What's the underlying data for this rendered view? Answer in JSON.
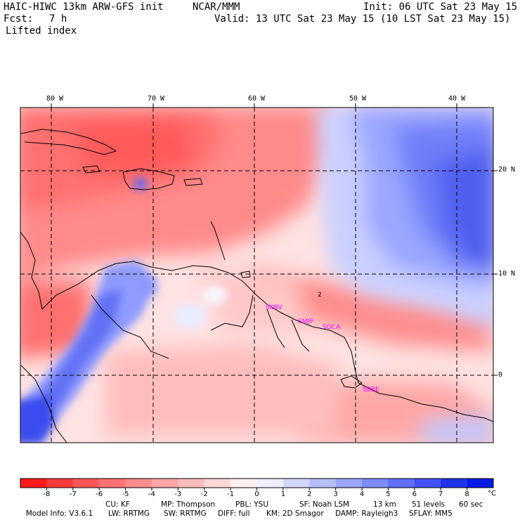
{
  "header": {
    "model_title": "HAIC-HIWC 13km ARW-GFS init",
    "org": "NCAR/MMM",
    "init": "Init: 06 UTC Sat 23 May 15",
    "fcst_label": "Fcst:",
    "fcst_value": "7 h",
    "valid": "Valid: 13 UTC Sat 23 May 15 (10 LST Sat 23 May 15)",
    "field_name": "Lifted index"
  },
  "map": {
    "lon_labels": [
      "80 W",
      "70 W",
      "60 W",
      "50 W",
      "40 W"
    ],
    "lat_labels": [
      "20 N",
      "10 N",
      "0"
    ],
    "contour_label": "2",
    "stations": [
      "SKBV",
      "SMJP",
      "SOCA",
      "SBBE"
    ],
    "colors": {
      "frame": "#000000",
      "station": "#ff00ff"
    }
  },
  "colorbar": {
    "ticks": [
      "-8",
      "-7",
      "-6",
      "-5",
      "-4",
      "-3",
      "-2",
      "-1",
      "0",
      "1",
      "2",
      "3",
      "4",
      "5",
      "6",
      "7",
      "8"
    ],
    "unit": "°C",
    "colors": [
      "#ff1a1a",
      "#ff3b3b",
      "#ff5757",
      "#ff7272",
      "#ff8c8c",
      "#ffa5a5",
      "#ffbcbc",
      "#ffd6d6",
      "#fff0f0",
      "#eef0ff",
      "#d2d8ff",
      "#b7c0ff",
      "#9aa6ff",
      "#7d8cff",
      "#606ffd",
      "#4252f5",
      "#2233ee",
      "#0a1ae6"
    ]
  },
  "footer": {
    "line1": [
      {
        "text": "Model Info: V3.6.1"
      },
      {
        "text": "CU: KF"
      },
      {
        "text": "MP: Thompson"
      },
      {
        "text": "PBL: YSU"
      },
      {
        "text": "SF: Noah LSM"
      },
      {
        "text": "13 km"
      },
      {
        "text": "51 levels"
      },
      {
        "text": "60 sec"
      }
    ],
    "line2": [
      {
        "text": "LW: RRTMG"
      },
      {
        "text": "SW: RRTMG"
      },
      {
        "text": "DIFF: full"
      },
      {
        "text": "KM: 2D Smagor"
      },
      {
        "text": "DAMP: Rayleigh3"
      },
      {
        "text": "SFLAY: MM5"
      }
    ]
  }
}
